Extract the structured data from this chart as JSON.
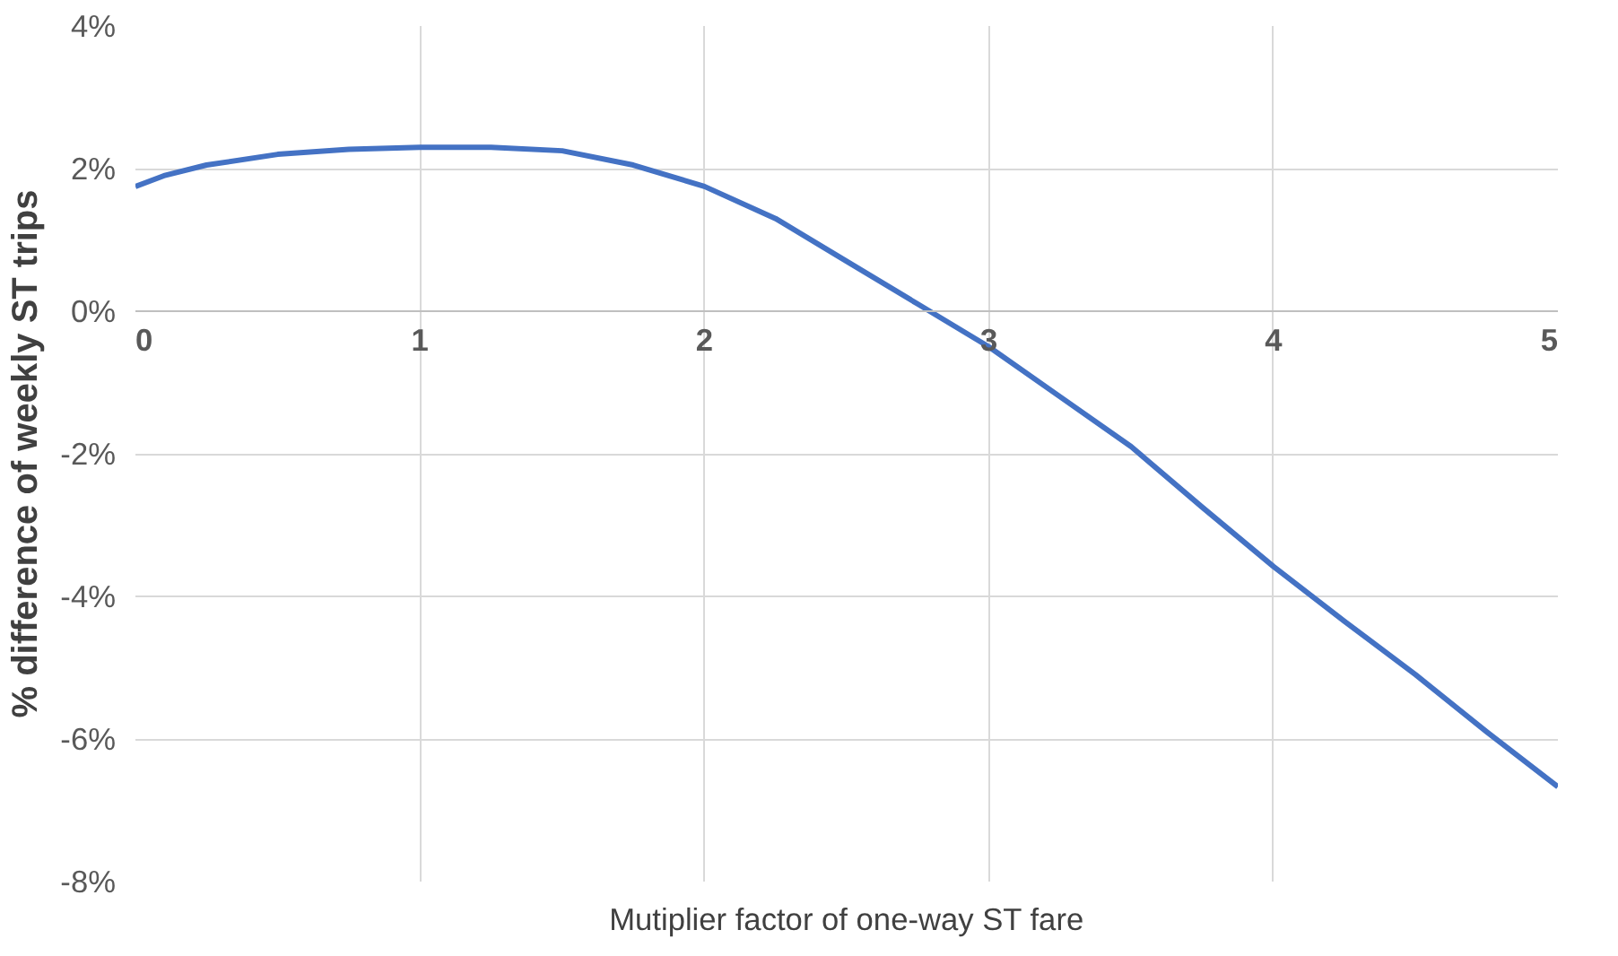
{
  "chart_data": {
    "type": "line",
    "xlabel": "Mutiplier factor of one-way ST fare",
    "ylabel": "% difference of weekly ST trips",
    "x": [
      0,
      0.1,
      0.25,
      0.5,
      0.75,
      1,
      1.25,
      1.5,
      1.75,
      2,
      2.25,
      2.5,
      2.75,
      3,
      3.25,
      3.5,
      3.75,
      4,
      4.25,
      4.5,
      4.75,
      5
    ],
    "series": [
      {
        "color": "#4472c4",
        "values": [
          1.75,
          1.9,
          2.05,
          2.2,
          2.27,
          2.3,
          2.3,
          2.25,
          2.05,
          1.75,
          1.3,
          0.7,
          0.1,
          -0.5,
          -1.2,
          -1.9,
          -2.75,
          -3.58,
          -4.35,
          -5.1,
          -5.9,
          -6.67
        ]
      }
    ],
    "xlim": [
      0,
      5
    ],
    "xticks": [
      0,
      1,
      2,
      3,
      4,
      5
    ],
    "ylim": [
      -8,
      4
    ],
    "yticks": [
      {
        "value": -8,
        "label": "-8%"
      },
      {
        "value": -6,
        "label": "-6%"
      },
      {
        "value": -4,
        "label": "-4%"
      },
      {
        "value": -2,
        "label": "-2%"
      },
      {
        "value": 0,
        "label": "0%"
      },
      {
        "value": 2,
        "label": "2%"
      },
      {
        "value": 4,
        "label": "4%"
      }
    ],
    "grid": true,
    "marker": "none",
    "line_style": "solid"
  }
}
